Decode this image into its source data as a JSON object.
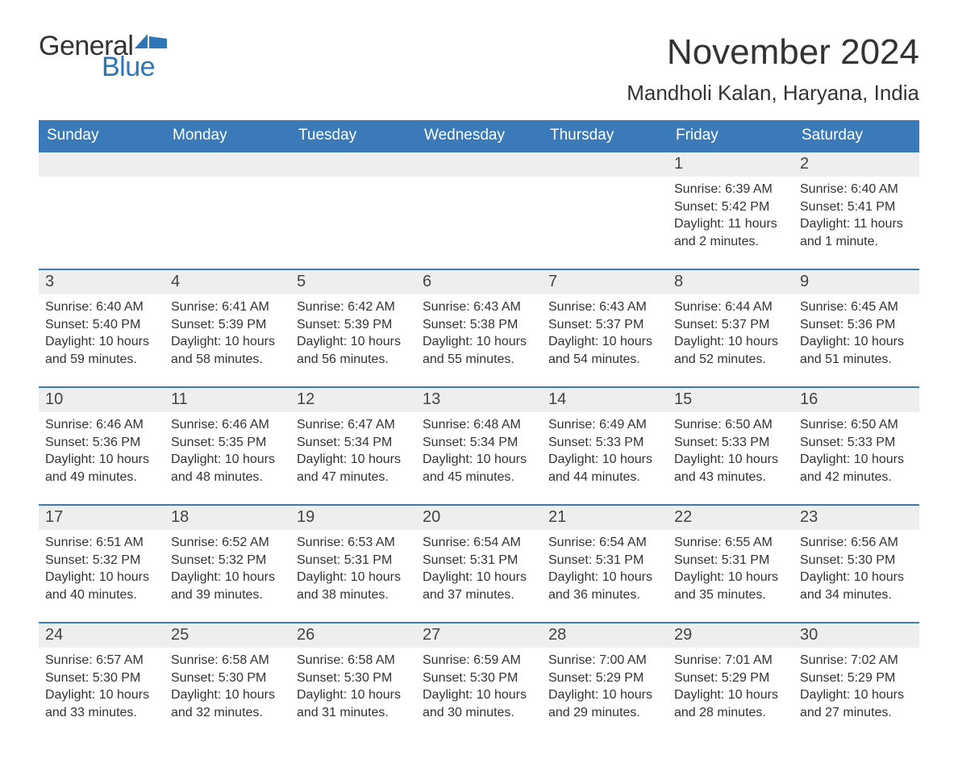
{
  "brand": {
    "text_general": "General",
    "text_blue": "Blue",
    "flag_color": "#2e76b6",
    "general_color": "#333333",
    "blue_color": "#2e76b6"
  },
  "header": {
    "month_title": "November 2024",
    "location": "Mandholi Kalan, Haryana, India"
  },
  "colors": {
    "header_bg": "#3a7ab8",
    "header_text": "#ffffff",
    "row_divider": "#3a7ab8",
    "daynum_bg": "#eeeeee",
    "body_text": "#333333",
    "page_bg": "#ffffff"
  },
  "typography": {
    "month_title_fontsize": 44,
    "location_fontsize": 26,
    "weekday_fontsize": 19,
    "daynum_fontsize": 20,
    "body_fontsize": 16
  },
  "layout": {
    "columns": 7,
    "rows": 5,
    "week_start": "Sunday"
  },
  "weekdays": [
    "Sunday",
    "Monday",
    "Tuesday",
    "Wednesday",
    "Thursday",
    "Friday",
    "Saturday"
  ],
  "weeks": [
    [
      {
        "empty": true
      },
      {
        "empty": true
      },
      {
        "empty": true
      },
      {
        "empty": true
      },
      {
        "empty": true
      },
      {
        "day": "1",
        "sunrise": "Sunrise: 6:39 AM",
        "sunset": "Sunset: 5:42 PM",
        "daylight": "Daylight: 11 hours and 2 minutes."
      },
      {
        "day": "2",
        "sunrise": "Sunrise: 6:40 AM",
        "sunset": "Sunset: 5:41 PM",
        "daylight": "Daylight: 11 hours and 1 minute."
      }
    ],
    [
      {
        "day": "3",
        "sunrise": "Sunrise: 6:40 AM",
        "sunset": "Sunset: 5:40 PM",
        "daylight": "Daylight: 10 hours and 59 minutes."
      },
      {
        "day": "4",
        "sunrise": "Sunrise: 6:41 AM",
        "sunset": "Sunset: 5:39 PM",
        "daylight": "Daylight: 10 hours and 58 minutes."
      },
      {
        "day": "5",
        "sunrise": "Sunrise: 6:42 AM",
        "sunset": "Sunset: 5:39 PM",
        "daylight": "Daylight: 10 hours and 56 minutes."
      },
      {
        "day": "6",
        "sunrise": "Sunrise: 6:43 AM",
        "sunset": "Sunset: 5:38 PM",
        "daylight": "Daylight: 10 hours and 55 minutes."
      },
      {
        "day": "7",
        "sunrise": "Sunrise: 6:43 AM",
        "sunset": "Sunset: 5:37 PM",
        "daylight": "Daylight: 10 hours and 54 minutes."
      },
      {
        "day": "8",
        "sunrise": "Sunrise: 6:44 AM",
        "sunset": "Sunset: 5:37 PM",
        "daylight": "Daylight: 10 hours and 52 minutes."
      },
      {
        "day": "9",
        "sunrise": "Sunrise: 6:45 AM",
        "sunset": "Sunset: 5:36 PM",
        "daylight": "Daylight: 10 hours and 51 minutes."
      }
    ],
    [
      {
        "day": "10",
        "sunrise": "Sunrise: 6:46 AM",
        "sunset": "Sunset: 5:36 PM",
        "daylight": "Daylight: 10 hours and 49 minutes."
      },
      {
        "day": "11",
        "sunrise": "Sunrise: 6:46 AM",
        "sunset": "Sunset: 5:35 PM",
        "daylight": "Daylight: 10 hours and 48 minutes."
      },
      {
        "day": "12",
        "sunrise": "Sunrise: 6:47 AM",
        "sunset": "Sunset: 5:34 PM",
        "daylight": "Daylight: 10 hours and 47 minutes."
      },
      {
        "day": "13",
        "sunrise": "Sunrise: 6:48 AM",
        "sunset": "Sunset: 5:34 PM",
        "daylight": "Daylight: 10 hours and 45 minutes."
      },
      {
        "day": "14",
        "sunrise": "Sunrise: 6:49 AM",
        "sunset": "Sunset: 5:33 PM",
        "daylight": "Daylight: 10 hours and 44 minutes."
      },
      {
        "day": "15",
        "sunrise": "Sunrise: 6:50 AM",
        "sunset": "Sunset: 5:33 PM",
        "daylight": "Daylight: 10 hours and 43 minutes."
      },
      {
        "day": "16",
        "sunrise": "Sunrise: 6:50 AM",
        "sunset": "Sunset: 5:33 PM",
        "daylight": "Daylight: 10 hours and 42 minutes."
      }
    ],
    [
      {
        "day": "17",
        "sunrise": "Sunrise: 6:51 AM",
        "sunset": "Sunset: 5:32 PM",
        "daylight": "Daylight: 10 hours and 40 minutes."
      },
      {
        "day": "18",
        "sunrise": "Sunrise: 6:52 AM",
        "sunset": "Sunset: 5:32 PM",
        "daylight": "Daylight: 10 hours and 39 minutes."
      },
      {
        "day": "19",
        "sunrise": "Sunrise: 6:53 AM",
        "sunset": "Sunset: 5:31 PM",
        "daylight": "Daylight: 10 hours and 38 minutes."
      },
      {
        "day": "20",
        "sunrise": "Sunrise: 6:54 AM",
        "sunset": "Sunset: 5:31 PM",
        "daylight": "Daylight: 10 hours and 37 minutes."
      },
      {
        "day": "21",
        "sunrise": "Sunrise: 6:54 AM",
        "sunset": "Sunset: 5:31 PM",
        "daylight": "Daylight: 10 hours and 36 minutes."
      },
      {
        "day": "22",
        "sunrise": "Sunrise: 6:55 AM",
        "sunset": "Sunset: 5:31 PM",
        "daylight": "Daylight: 10 hours and 35 minutes."
      },
      {
        "day": "23",
        "sunrise": "Sunrise: 6:56 AM",
        "sunset": "Sunset: 5:30 PM",
        "daylight": "Daylight: 10 hours and 34 minutes."
      }
    ],
    [
      {
        "day": "24",
        "sunrise": "Sunrise: 6:57 AM",
        "sunset": "Sunset: 5:30 PM",
        "daylight": "Daylight: 10 hours and 33 minutes."
      },
      {
        "day": "25",
        "sunrise": "Sunrise: 6:58 AM",
        "sunset": "Sunset: 5:30 PM",
        "daylight": "Daylight: 10 hours and 32 minutes."
      },
      {
        "day": "26",
        "sunrise": "Sunrise: 6:58 AM",
        "sunset": "Sunset: 5:30 PM",
        "daylight": "Daylight: 10 hours and 31 minutes."
      },
      {
        "day": "27",
        "sunrise": "Sunrise: 6:59 AM",
        "sunset": "Sunset: 5:30 PM",
        "daylight": "Daylight: 10 hours and 30 minutes."
      },
      {
        "day": "28",
        "sunrise": "Sunrise: 7:00 AM",
        "sunset": "Sunset: 5:29 PM",
        "daylight": "Daylight: 10 hours and 29 minutes."
      },
      {
        "day": "29",
        "sunrise": "Sunrise: 7:01 AM",
        "sunset": "Sunset: 5:29 PM",
        "daylight": "Daylight: 10 hours and 28 minutes."
      },
      {
        "day": "30",
        "sunrise": "Sunrise: 7:02 AM",
        "sunset": "Sunset: 5:29 PM",
        "daylight": "Daylight: 10 hours and 27 minutes."
      }
    ]
  ]
}
